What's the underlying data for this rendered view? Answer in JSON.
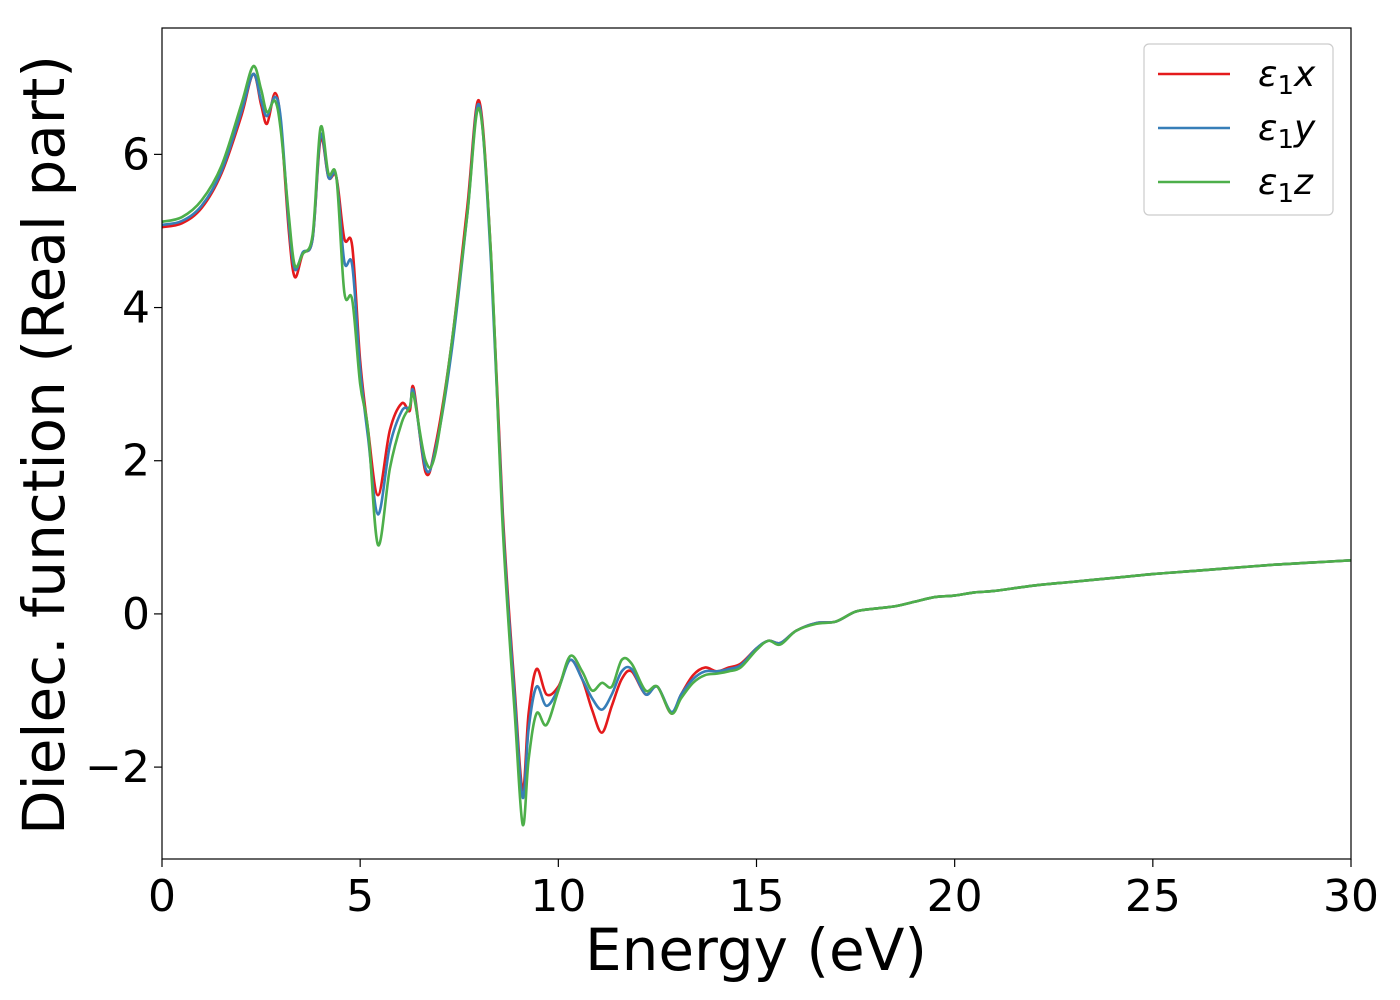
{
  "chart_data": {
    "type": "line",
    "title": "",
    "xlabel": "Energy (eV)",
    "ylabel": "Dielec. function (Real part)",
    "xlim": [
      0,
      30
    ],
    "ylim": [
      -3.2,
      7.65
    ],
    "xticks": [
      0,
      5,
      10,
      15,
      20,
      25,
      30
    ],
    "xtick_labels": [
      "0",
      "5",
      "10",
      "15",
      "20",
      "25",
      "30"
    ],
    "yticks": [
      -2,
      0,
      2,
      4,
      6
    ],
    "ytick_labels": [
      "−2",
      "0",
      "2",
      "4",
      "6"
    ],
    "grid": false,
    "legend_position": "top-right",
    "series": [
      {
        "name": "ε1x",
        "legend_base": "ε",
        "legend_sub": "1",
        "legend_suffix": "x",
        "color": "#e41a1c",
        "points": [
          [
            0,
            5.05
          ],
          [
            0.5,
            5.1
          ],
          [
            1.0,
            5.3
          ],
          [
            1.5,
            5.75
          ],
          [
            2.0,
            6.5
          ],
          [
            2.3,
            7.05
          ],
          [
            2.5,
            6.65
          ],
          [
            2.65,
            6.4
          ],
          [
            2.85,
            6.8
          ],
          [
            3.0,
            6.4
          ],
          [
            3.2,
            5.0
          ],
          [
            3.35,
            4.4
          ],
          [
            3.55,
            4.7
          ],
          [
            3.8,
            4.9
          ],
          [
            4.0,
            6.2
          ],
          [
            4.2,
            5.7
          ],
          [
            4.4,
            5.7
          ],
          [
            4.6,
            4.9
          ],
          [
            4.8,
            4.8
          ],
          [
            5.0,
            3.3
          ],
          [
            5.2,
            2.4
          ],
          [
            5.45,
            1.55
          ],
          [
            5.75,
            2.4
          ],
          [
            6.05,
            2.75
          ],
          [
            6.25,
            2.65
          ],
          [
            6.35,
            2.95
          ],
          [
            6.65,
            1.85
          ],
          [
            6.9,
            2.2
          ],
          [
            7.3,
            3.5
          ],
          [
            7.7,
            5.3
          ],
          [
            8.0,
            6.7
          ],
          [
            8.3,
            4.7
          ],
          [
            8.6,
            1.3
          ],
          [
            8.9,
            -1.0
          ],
          [
            9.1,
            -2.3
          ],
          [
            9.25,
            -1.3
          ],
          [
            9.45,
            -0.72
          ],
          [
            9.7,
            -1.05
          ],
          [
            10.0,
            -0.95
          ],
          [
            10.3,
            -0.6
          ],
          [
            10.6,
            -0.85
          ],
          [
            10.85,
            -1.25
          ],
          [
            11.1,
            -1.55
          ],
          [
            11.35,
            -1.2
          ],
          [
            11.6,
            -0.85
          ],
          [
            11.85,
            -0.75
          ],
          [
            12.2,
            -1.05
          ],
          [
            12.5,
            -0.95
          ],
          [
            12.85,
            -1.3
          ],
          [
            13.1,
            -1.05
          ],
          [
            13.4,
            -0.8
          ],
          [
            13.7,
            -0.7
          ],
          [
            14.0,
            -0.75
          ],
          [
            14.3,
            -0.7
          ],
          [
            14.6,
            -0.65
          ],
          [
            15.0,
            -0.45
          ],
          [
            15.3,
            -0.35
          ],
          [
            15.6,
            -0.38
          ],
          [
            16.0,
            -0.22
          ],
          [
            16.5,
            -0.12
          ],
          [
            17.0,
            -0.1
          ],
          [
            17.5,
            0.03
          ],
          [
            18.0,
            0.07
          ],
          [
            18.5,
            0.1
          ],
          [
            19.0,
            0.16
          ],
          [
            19.5,
            0.22
          ],
          [
            20.0,
            0.24
          ],
          [
            20.5,
            0.28
          ],
          [
            21.0,
            0.3
          ],
          [
            22.0,
            0.37
          ],
          [
            23.0,
            0.42
          ],
          [
            24.0,
            0.47
          ],
          [
            25.0,
            0.52
          ],
          [
            26.0,
            0.56
          ],
          [
            27.0,
            0.6
          ],
          [
            28.0,
            0.64
          ],
          [
            29.0,
            0.67
          ],
          [
            30.0,
            0.7
          ]
        ]
      },
      {
        "name": "ε1y",
        "legend_base": "ε",
        "legend_sub": "1",
        "legend_suffix": "y",
        "color": "#377eb8",
        "points": [
          [
            0,
            5.08
          ],
          [
            0.5,
            5.13
          ],
          [
            1.0,
            5.33
          ],
          [
            1.5,
            5.78
          ],
          [
            2.0,
            6.55
          ],
          [
            2.3,
            7.05
          ],
          [
            2.5,
            6.7
          ],
          [
            2.65,
            6.5
          ],
          [
            2.85,
            6.75
          ],
          [
            3.0,
            6.45
          ],
          [
            3.2,
            5.1
          ],
          [
            3.35,
            4.5
          ],
          [
            3.55,
            4.72
          ],
          [
            3.8,
            4.9
          ],
          [
            4.0,
            6.25
          ],
          [
            4.2,
            5.7
          ],
          [
            4.4,
            5.7
          ],
          [
            4.6,
            4.6
          ],
          [
            4.8,
            4.55
          ],
          [
            5.0,
            3.2
          ],
          [
            5.2,
            2.3
          ],
          [
            5.45,
            1.3
          ],
          [
            5.75,
            2.2
          ],
          [
            6.05,
            2.65
          ],
          [
            6.25,
            2.7
          ],
          [
            6.35,
            2.9
          ],
          [
            6.65,
            1.9
          ],
          [
            6.9,
            2.15
          ],
          [
            7.3,
            3.4
          ],
          [
            7.7,
            5.2
          ],
          [
            8.0,
            6.65
          ],
          [
            8.3,
            4.6
          ],
          [
            8.6,
            1.2
          ],
          [
            8.9,
            -1.1
          ],
          [
            9.1,
            -2.4
          ],
          [
            9.25,
            -1.5
          ],
          [
            9.45,
            -0.95
          ],
          [
            9.7,
            -1.2
          ],
          [
            10.0,
            -0.98
          ],
          [
            10.3,
            -0.6
          ],
          [
            10.6,
            -0.85
          ],
          [
            10.85,
            -1.1
          ],
          [
            11.1,
            -1.25
          ],
          [
            11.35,
            -1.05
          ],
          [
            11.6,
            -0.75
          ],
          [
            11.85,
            -0.72
          ],
          [
            12.2,
            -1.05
          ],
          [
            12.5,
            -0.95
          ],
          [
            12.85,
            -1.28
          ],
          [
            13.1,
            -1.05
          ],
          [
            13.4,
            -0.85
          ],
          [
            13.7,
            -0.75
          ],
          [
            14.0,
            -0.75
          ],
          [
            14.3,
            -0.72
          ],
          [
            14.6,
            -0.67
          ],
          [
            15.0,
            -0.45
          ],
          [
            15.3,
            -0.35
          ],
          [
            15.6,
            -0.38
          ],
          [
            16.0,
            -0.22
          ],
          [
            16.5,
            -0.12
          ],
          [
            17.0,
            -0.1
          ],
          [
            17.5,
            0.03
          ],
          [
            18.0,
            0.07
          ],
          [
            18.5,
            0.1
          ],
          [
            19.0,
            0.16
          ],
          [
            19.5,
            0.22
          ],
          [
            20.0,
            0.24
          ],
          [
            20.5,
            0.28
          ],
          [
            21.0,
            0.3
          ],
          [
            22.0,
            0.37
          ],
          [
            23.0,
            0.42
          ],
          [
            24.0,
            0.47
          ],
          [
            25.0,
            0.52
          ],
          [
            26.0,
            0.56
          ],
          [
            27.0,
            0.6
          ],
          [
            28.0,
            0.64
          ],
          [
            29.0,
            0.67
          ],
          [
            30.0,
            0.7
          ]
        ]
      },
      {
        "name": "ε1z",
        "legend_base": "ε",
        "legend_sub": "1",
        "legend_suffix": "z",
        "color": "#4daf4a",
        "points": [
          [
            0,
            5.12
          ],
          [
            0.5,
            5.18
          ],
          [
            1.0,
            5.4
          ],
          [
            1.5,
            5.85
          ],
          [
            2.0,
            6.65
          ],
          [
            2.3,
            7.15
          ],
          [
            2.5,
            6.85
          ],
          [
            2.65,
            6.55
          ],
          [
            2.85,
            6.7
          ],
          [
            3.0,
            6.3
          ],
          [
            3.2,
            5.2
          ],
          [
            3.35,
            4.55
          ],
          [
            3.55,
            4.7
          ],
          [
            3.8,
            4.95
          ],
          [
            4.0,
            6.35
          ],
          [
            4.2,
            5.75
          ],
          [
            4.4,
            5.7
          ],
          [
            4.6,
            4.2
          ],
          [
            4.8,
            4.1
          ],
          [
            5.0,
            3.0
          ],
          [
            5.2,
            2.4
          ],
          [
            5.45,
            0.9
          ],
          [
            5.75,
            1.9
          ],
          [
            6.05,
            2.5
          ],
          [
            6.25,
            2.7
          ],
          [
            6.35,
            2.85
          ],
          [
            6.65,
            2.0
          ],
          [
            6.9,
            2.1
          ],
          [
            7.3,
            3.5
          ],
          [
            7.7,
            5.2
          ],
          [
            8.0,
            6.6
          ],
          [
            8.3,
            4.7
          ],
          [
            8.6,
            1.1
          ],
          [
            8.9,
            -1.3
          ],
          [
            9.1,
            -2.75
          ],
          [
            9.25,
            -1.9
          ],
          [
            9.45,
            -1.3
          ],
          [
            9.7,
            -1.45
          ],
          [
            10.0,
            -1.0
          ],
          [
            10.3,
            -0.55
          ],
          [
            10.6,
            -0.75
          ],
          [
            10.85,
            -1.0
          ],
          [
            11.1,
            -0.9
          ],
          [
            11.35,
            -0.95
          ],
          [
            11.6,
            -0.6
          ],
          [
            11.85,
            -0.65
          ],
          [
            12.2,
            -1.0
          ],
          [
            12.5,
            -0.95
          ],
          [
            12.85,
            -1.3
          ],
          [
            13.1,
            -1.1
          ],
          [
            13.4,
            -0.9
          ],
          [
            13.7,
            -0.8
          ],
          [
            14.0,
            -0.78
          ],
          [
            14.3,
            -0.75
          ],
          [
            14.6,
            -0.7
          ],
          [
            15.0,
            -0.47
          ],
          [
            15.3,
            -0.35
          ],
          [
            15.6,
            -0.4
          ],
          [
            16.0,
            -0.22
          ],
          [
            16.5,
            -0.13
          ],
          [
            17.0,
            -0.1
          ],
          [
            17.5,
            0.03
          ],
          [
            18.0,
            0.07
          ],
          [
            18.5,
            0.1
          ],
          [
            19.0,
            0.16
          ],
          [
            19.5,
            0.22
          ],
          [
            20.0,
            0.24
          ],
          [
            20.5,
            0.28
          ],
          [
            21.0,
            0.3
          ],
          [
            22.0,
            0.37
          ],
          [
            23.0,
            0.42
          ],
          [
            24.0,
            0.47
          ],
          [
            25.0,
            0.52
          ],
          [
            26.0,
            0.56
          ],
          [
            27.0,
            0.6
          ],
          [
            28.0,
            0.64
          ],
          [
            29.0,
            0.67
          ],
          [
            30.0,
            0.7
          ]
        ]
      }
    ]
  }
}
